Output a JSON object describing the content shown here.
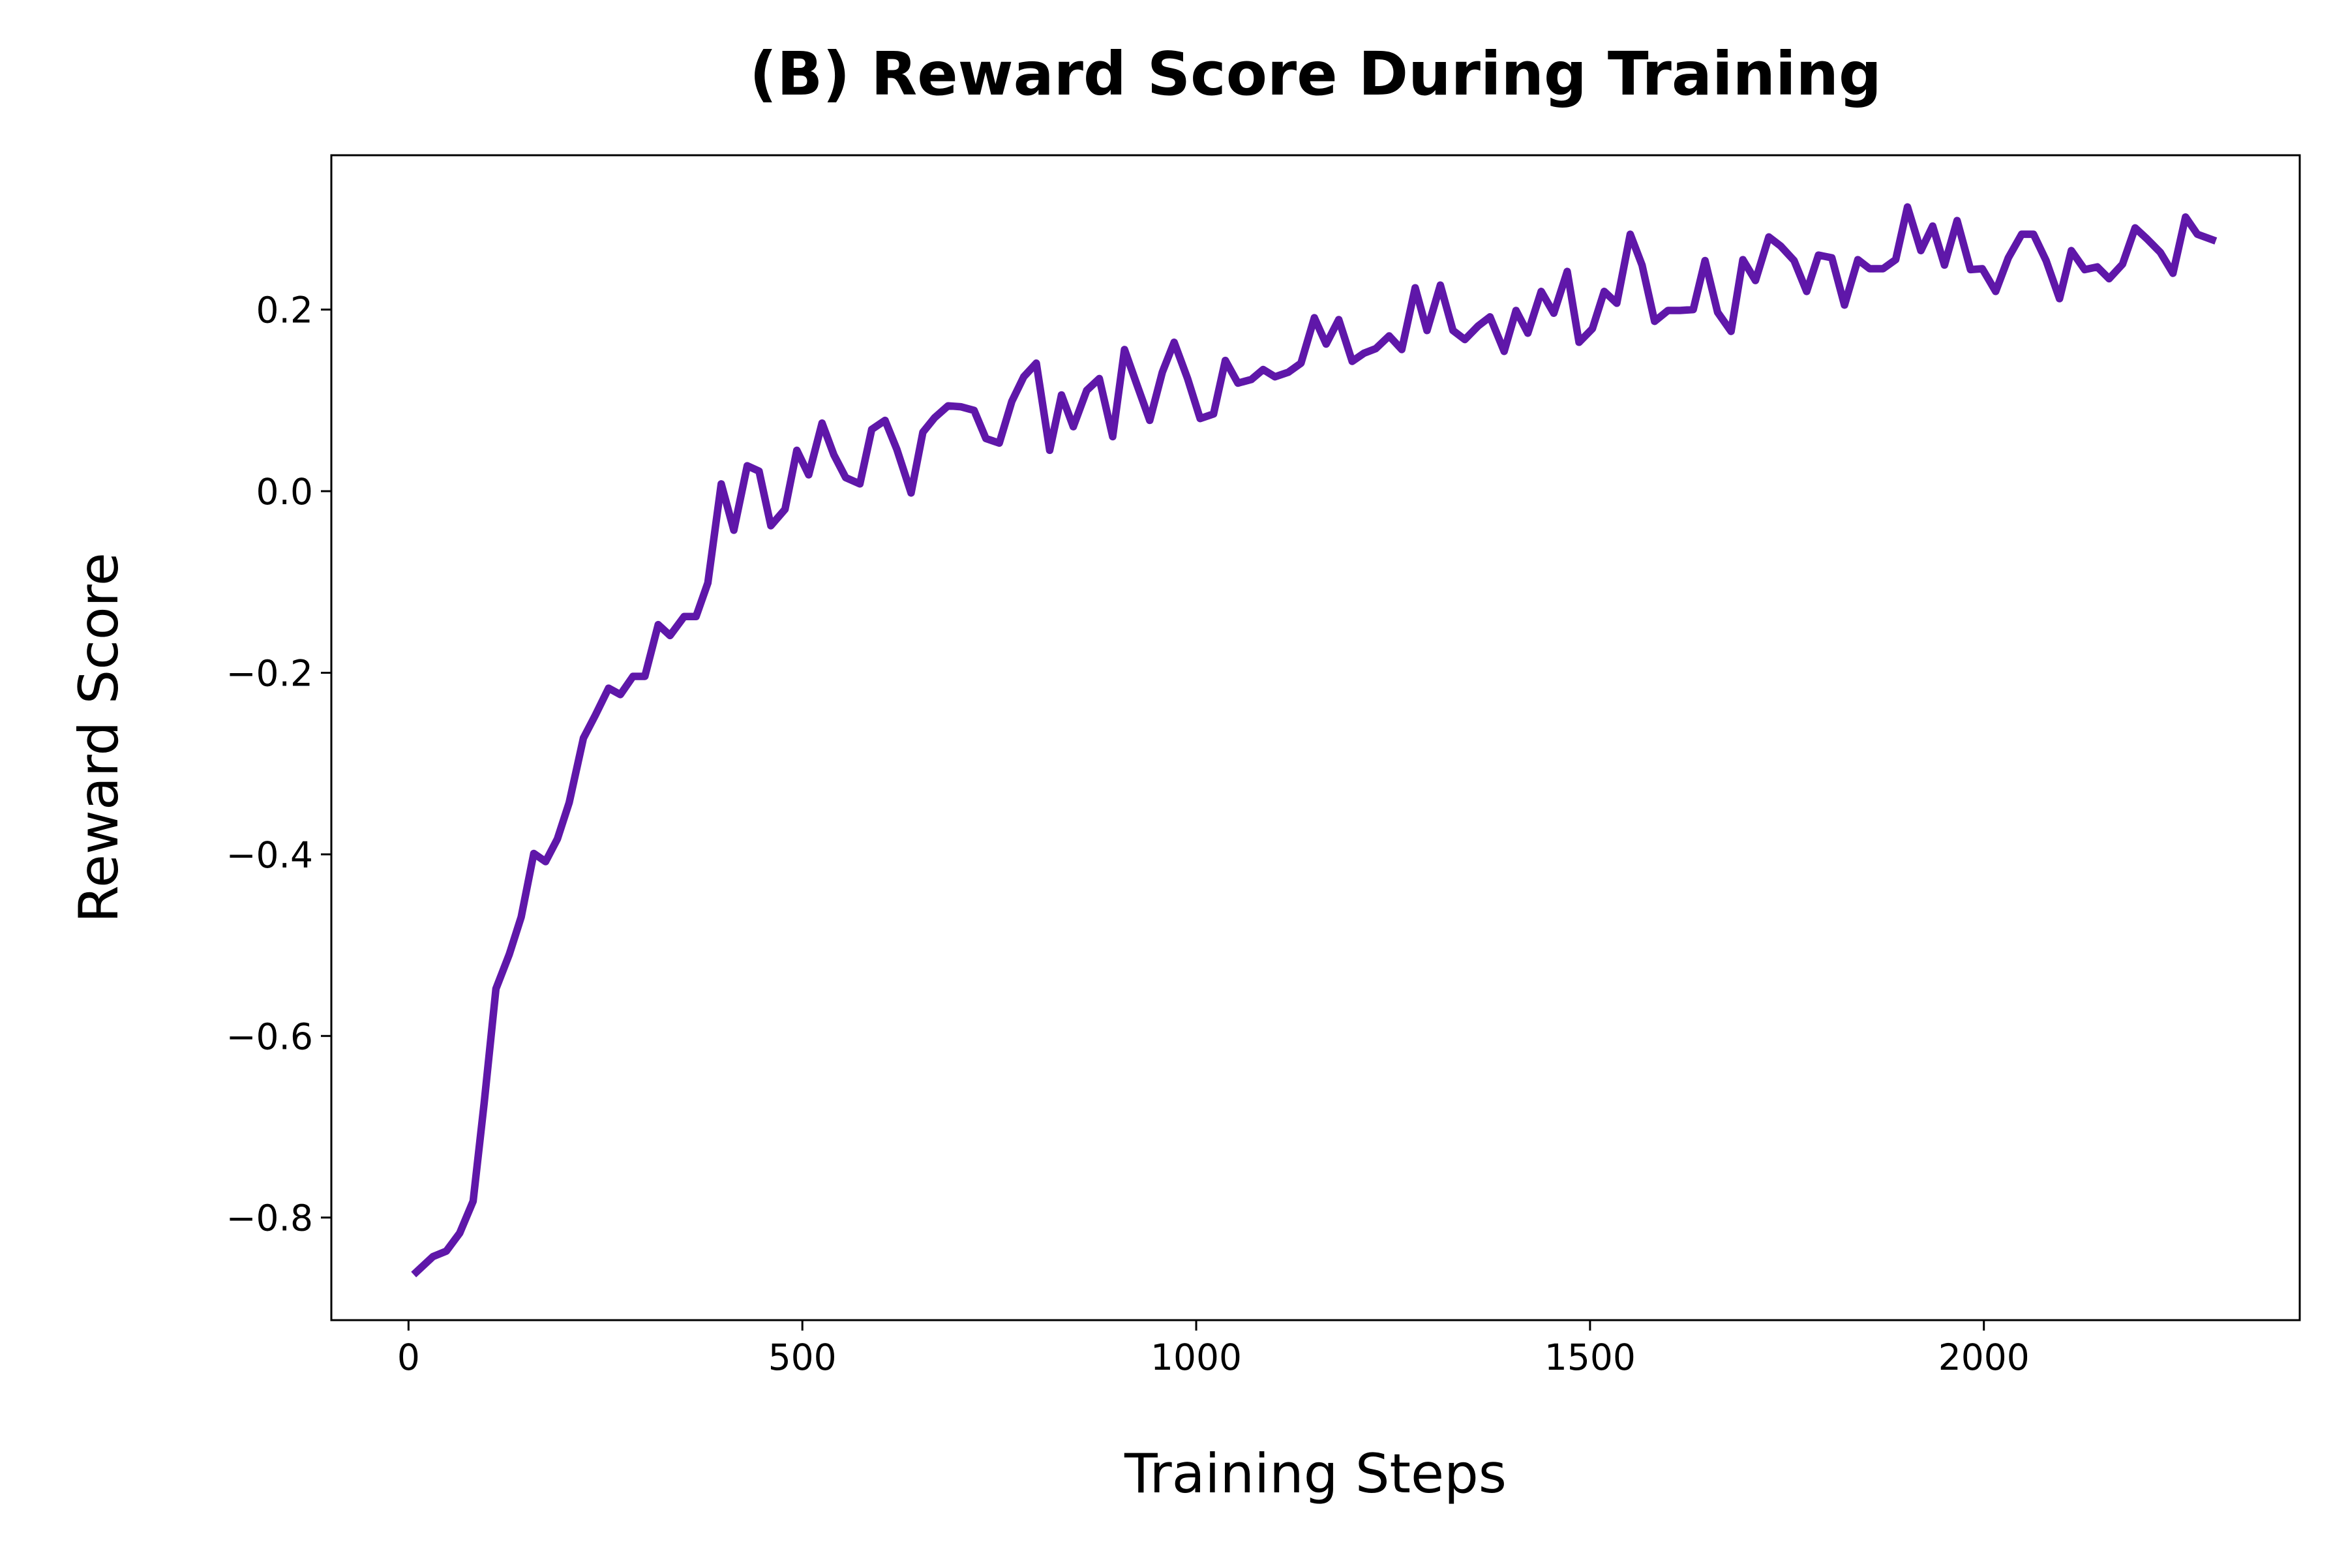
{
  "chart_data": {
    "type": "line",
    "title": "(B) Reward Score During Training",
    "xlabel": "Training Steps",
    "ylabel": "Reward Score",
    "color": "#5f17a9",
    "x": [
      10,
      31,
      48,
      65,
      82,
      96,
      111,
      128,
      143,
      159,
      174,
      189,
      204,
      222,
      237,
      254,
      269,
      285,
      300,
      317,
      332,
      350,
      365,
      380,
      397,
      413,
      430,
      445,
      460,
      478,
      493,
      508,
      525,
      540,
      555,
      573,
      588,
      605,
      620,
      638,
      653,
      668,
      685,
      701,
      718,
      733,
      750,
      766,
      781,
      797,
      814,
      829,
      844,
      861,
      877,
      894,
      909,
      924,
      941,
      957,
      972,
      989,
      1005,
      1022,
      1037,
      1053,
      1070,
      1085,
      1100,
      1117,
      1133,
      1150,
      1165,
      1181,
      1198,
      1213,
      1228,
      1245,
      1261,
      1278,
      1293,
      1310,
      1326,
      1341,
      1358,
      1373,
      1391,
      1406,
      1421,
      1438,
      1454,
      1471,
      1486,
      1503,
      1518,
      1534,
      1551,
      1566,
      1582,
      1599,
      1614,
      1631,
      1646,
      1662,
      1679,
      1694,
      1710,
      1727,
      1742,
      1759,
      1775,
      1790,
      1807,
      1823,
      1840,
      1855,
      1872,
      1888,
      1903,
      1920,
      1935,
      1950,
      1966,
      1983,
      1998,
      2015,
      2031,
      2048,
      2063,
      2079,
      2096,
      2111,
      2128,
      2144,
      2159,
      2176,
      2192,
      2207,
      2224,
      2240,
      2256,
      2271,
      2290
    ],
    "values": [
      -0.86,
      -0.843,
      -0.837,
      -0.817,
      -0.782,
      -0.674,
      -0.548,
      -0.51,
      -0.469,
      -0.399,
      -0.408,
      -0.383,
      -0.343,
      -0.272,
      -0.247,
      -0.217,
      -0.224,
      -0.204,
      -0.204,
      -0.147,
      -0.159,
      -0.138,
      -0.138,
      -0.101,
      0.008,
      -0.043,
      0.028,
      0.022,
      -0.038,
      -0.02,
      0.045,
      0.018,
      0.075,
      0.04,
      0.015,
      0.008,
      0.068,
      0.078,
      0.046,
      -0.002,
      0.065,
      0.081,
      0.094,
      0.093,
      0.089,
      0.058,
      0.053,
      0.099,
      0.126,
      0.141,
      0.045,
      0.106,
      0.071,
      0.111,
      0.124,
      0.06,
      0.156,
      0.119,
      0.078,
      0.131,
      0.164,
      0.124,
      0.08,
      0.085,
      0.144,
      0.119,
      0.123,
      0.134,
      0.126,
      0.131,
      0.141,
      0.191,
      0.162,
      0.189,
      0.143,
      0.152,
      0.157,
      0.171,
      0.156,
      0.224,
      0.177,
      0.227,
      0.177,
      0.167,
      0.182,
      0.192,
      0.154,
      0.199,
      0.174,
      0.22,
      0.196,
      0.242,
      0.164,
      0.179,
      0.22,
      0.207,
      0.283,
      0.249,
      0.187,
      0.199,
      0.199,
      0.2,
      0.254,
      0.197,
      0.176,
      0.255,
      0.232,
      0.28,
      0.27,
      0.254,
      0.22,
      0.26,
      0.257,
      0.205,
      0.255,
      0.245,
      0.245,
      0.255,
      0.313,
      0.265,
      0.292,
      0.249,
      0.298,
      0.244,
      0.245,
      0.22,
      0.257,
      0.283,
      0.283,
      0.254,
      0.212,
      0.265,
      0.244,
      0.247,
      0.234,
      0.25,
      0.29,
      0.278,
      0.263,
      0.24,
      0.302,
      0.283,
      0.277
    ],
    "xlim": [
      -98,
      2401
    ],
    "ylim": [
      -0.913,
      0.37
    ],
    "xticks": [
      0,
      500,
      1000,
      1500,
      2000
    ],
    "yticks": [
      {
        "value": -0.8,
        "label": "−0.8"
      },
      {
        "value": -0.6,
        "label": "−0.6"
      },
      {
        "value": -0.4,
        "label": "−0.4"
      },
      {
        "value": -0.2,
        "label": "−0.2"
      },
      {
        "value": 0,
        "label": "0.0"
      },
      {
        "value": 0.2,
        "label": "0.2"
      }
    ]
  }
}
